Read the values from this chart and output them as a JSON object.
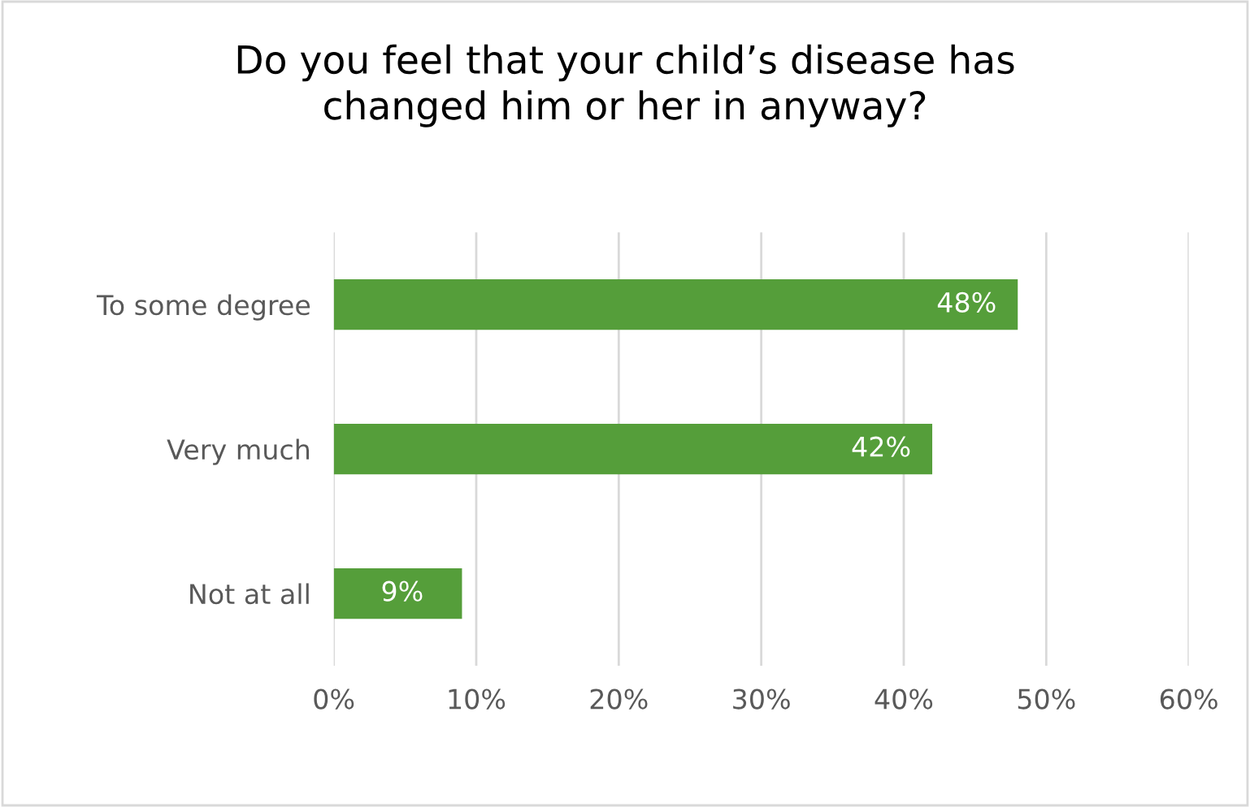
{
  "chart_data": {
    "type": "bar",
    "orientation": "horizontal",
    "title": "Do you feel that your child’s disease has\nchanged him or her in anyway?",
    "categories": [
      "To some degree",
      "Very much",
      "Not at all"
    ],
    "values": [
      48,
      42,
      9
    ],
    "value_labels": [
      "48%",
      "42%",
      "9%"
    ],
    "color": "#559e3a",
    "xlim": [
      0,
      60
    ],
    "xticks": [
      {
        "value": 0,
        "label": "0%"
      },
      {
        "value": 10,
        "label": "10%"
      },
      {
        "value": 20,
        "label": "20%"
      },
      {
        "value": 30,
        "label": "30%"
      },
      {
        "value": 40,
        "label": "40%"
      },
      {
        "value": 50,
        "label": "50%"
      },
      {
        "value": 60,
        "label": "60%"
      }
    ],
    "grid": "x",
    "legend": false
  }
}
